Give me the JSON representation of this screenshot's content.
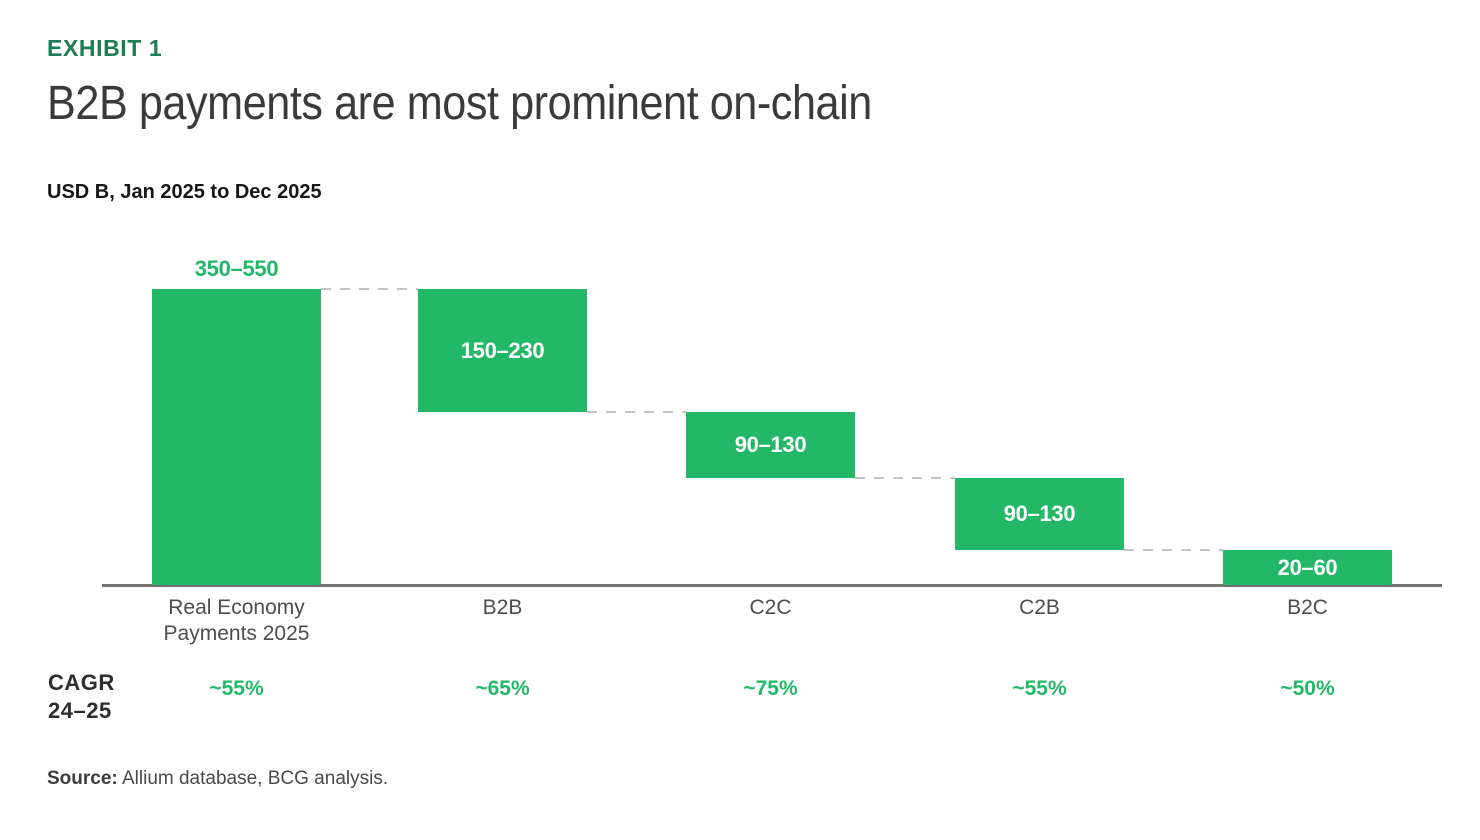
{
  "header": {
    "exhibit_label": "EXHIBIT 1",
    "title": "B2B payments are most prominent on-chain",
    "subtitle": "USD B, Jan 2025 to Dec 2025"
  },
  "chart_data": {
    "type": "bar",
    "subtype": "waterfall",
    "title": "B2B payments are most prominent on-chain",
    "units_label": "USD B, Jan 2025 to Dec 2025",
    "value_axis_visible": false,
    "baseline": 0,
    "categories": [
      "Real Economy Payments 2025",
      "B2B",
      "C2C",
      "C2B",
      "B2C"
    ],
    "bars": [
      {
        "category": "Real Economy Payments 2025",
        "category_lines": [
          "Real Economy",
          "Payments 2025"
        ],
        "value_label": "350–550",
        "value_range": [
          350,
          550
        ],
        "plot_value": 450,
        "label_position": "above",
        "cagr": "~55%",
        "cagr_pct": 55
      },
      {
        "category": "B2B",
        "category_lines": [
          "B2B"
        ],
        "value_label": "150–230",
        "value_range": [
          150,
          230
        ],
        "plot_value": 187,
        "label_position": "inside",
        "cagr": "~65%",
        "cagr_pct": 65
      },
      {
        "category": "C2C",
        "category_lines": [
          "C2C"
        ],
        "value_label": "90–130",
        "value_range": [
          90,
          130
        ],
        "plot_value": 100,
        "label_position": "inside",
        "cagr": "~75%",
        "cagr_pct": 75
      },
      {
        "category": "C2B",
        "category_lines": [
          "C2B"
        ],
        "value_label": "90–130",
        "value_range": [
          90,
          130
        ],
        "plot_value": 110,
        "label_position": "inside",
        "cagr": "~55%",
        "cagr_pct": 55
      },
      {
        "category": "B2C",
        "category_lines": [
          "B2C"
        ],
        "value_label": "20–60",
        "value_range": [
          20,
          60
        ],
        "plot_value": 53,
        "label_position": "inside",
        "cagr": "~50%",
        "cagr_pct": 50
      }
    ],
    "cagr_row_label_lines": [
      "CAGR",
      "24–25"
    ],
    "colors": {
      "bar_green": "#22b867",
      "value_green": "#22b867",
      "exhibit_green": "#1e7d52",
      "axis_gray": "#747474",
      "connector_gray": "#c3c3c3"
    }
  },
  "footer": {
    "source_label": "Source:",
    "source_text": " Allium database, BCG analysis."
  }
}
